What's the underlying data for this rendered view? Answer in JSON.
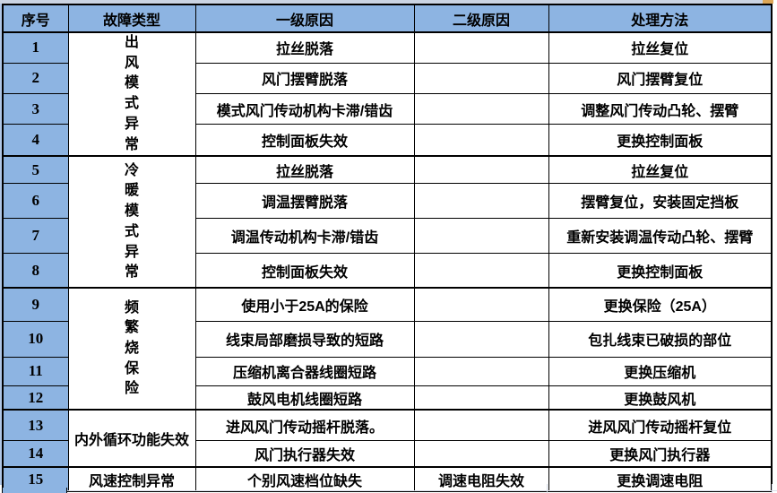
{
  "colors": {
    "header_bg": "#8DB4E2",
    "serial_col_bg": "#8DB4E2",
    "cell_bg": "#FFFFFF",
    "border": "#000000",
    "sheet_strip": "#CBD4E3",
    "corner_accent": "#DCA758",
    "faint_gridline": "#D7DDE8"
  },
  "table": {
    "headers": [
      {
        "label": "序号"
      },
      {
        "label": "故障类型"
      },
      {
        "label": "一级原因"
      },
      {
        "label": "二级原因"
      },
      {
        "label": "处理方法"
      }
    ],
    "groups": [
      {
        "fault_type": "出风模式异常",
        "orientation": "vertical",
        "rows": [
          {
            "no": "1",
            "primary_cause": "拉丝脱落",
            "secondary_cause": "",
            "remedy": "拉丝复位"
          },
          {
            "no": "2",
            "primary_cause": "风门摆臂脱落",
            "secondary_cause": "",
            "remedy": "风门摆臂复位"
          },
          {
            "no": "3",
            "primary_cause": "模式风门传动机构卡滞/错齿",
            "secondary_cause": "",
            "remedy": "调整风门传动凸轮、摆臂"
          },
          {
            "no": "4",
            "primary_cause": "控制面板失效",
            "secondary_cause": "",
            "remedy": "更换控制面板"
          }
        ]
      },
      {
        "fault_type": "冷暖模式异常",
        "orientation": "vertical",
        "rows": [
          {
            "no": "5",
            "primary_cause": "拉丝脱落",
            "secondary_cause": "",
            "remedy": "拉丝复位"
          },
          {
            "no": "6",
            "primary_cause": "调温摆臂脱落",
            "secondary_cause": "",
            "remedy": "摆臂复位，安装固定挡板"
          },
          {
            "no": "7",
            "primary_cause": "调温传动机构卡滞/错齿",
            "secondary_cause": "",
            "remedy": "重新安装调温传动凸轮、摆臂"
          },
          {
            "no": "8",
            "primary_cause": "控制面板失效",
            "secondary_cause": "",
            "remedy": "更换控制面板"
          }
        ]
      },
      {
        "fault_type": "频繁烧保险",
        "orientation": "vertical",
        "rows": [
          {
            "no": "9",
            "primary_cause": "使用小于25A的保险",
            "secondary_cause": "",
            "remedy": "更换保险（25A）"
          },
          {
            "no": "10",
            "primary_cause": "线束局部磨损导致的短路",
            "secondary_cause": "",
            "remedy": "包扎线束已破损的部位"
          },
          {
            "no": "11",
            "primary_cause": "压缩机离合器线圈短路",
            "secondary_cause": "",
            "remedy": "更换压缩机"
          },
          {
            "no": "12",
            "primary_cause": "鼓风电机线圈短路",
            "secondary_cause": "",
            "remedy": "更换鼓风机"
          }
        ]
      },
      {
        "fault_type": "内外循环功能失效",
        "orientation": "horizontal",
        "rows": [
          {
            "no": "13",
            "primary_cause": "进风风门传动摇杆脱落。",
            "secondary_cause": "",
            "remedy": "进风风门传动摇杆复位"
          },
          {
            "no": "14",
            "primary_cause": "风门执行器失效",
            "secondary_cause": "",
            "remedy": "更换风门执行器"
          }
        ]
      },
      {
        "fault_type": "风速控制异常",
        "orientation": "horizontal",
        "rows": [
          {
            "no": "15",
            "primary_cause": "个别风速档位缺失",
            "secondary_cause": "调速电阻失效",
            "remedy": "更换调速电阻"
          }
        ]
      }
    ]
  }
}
